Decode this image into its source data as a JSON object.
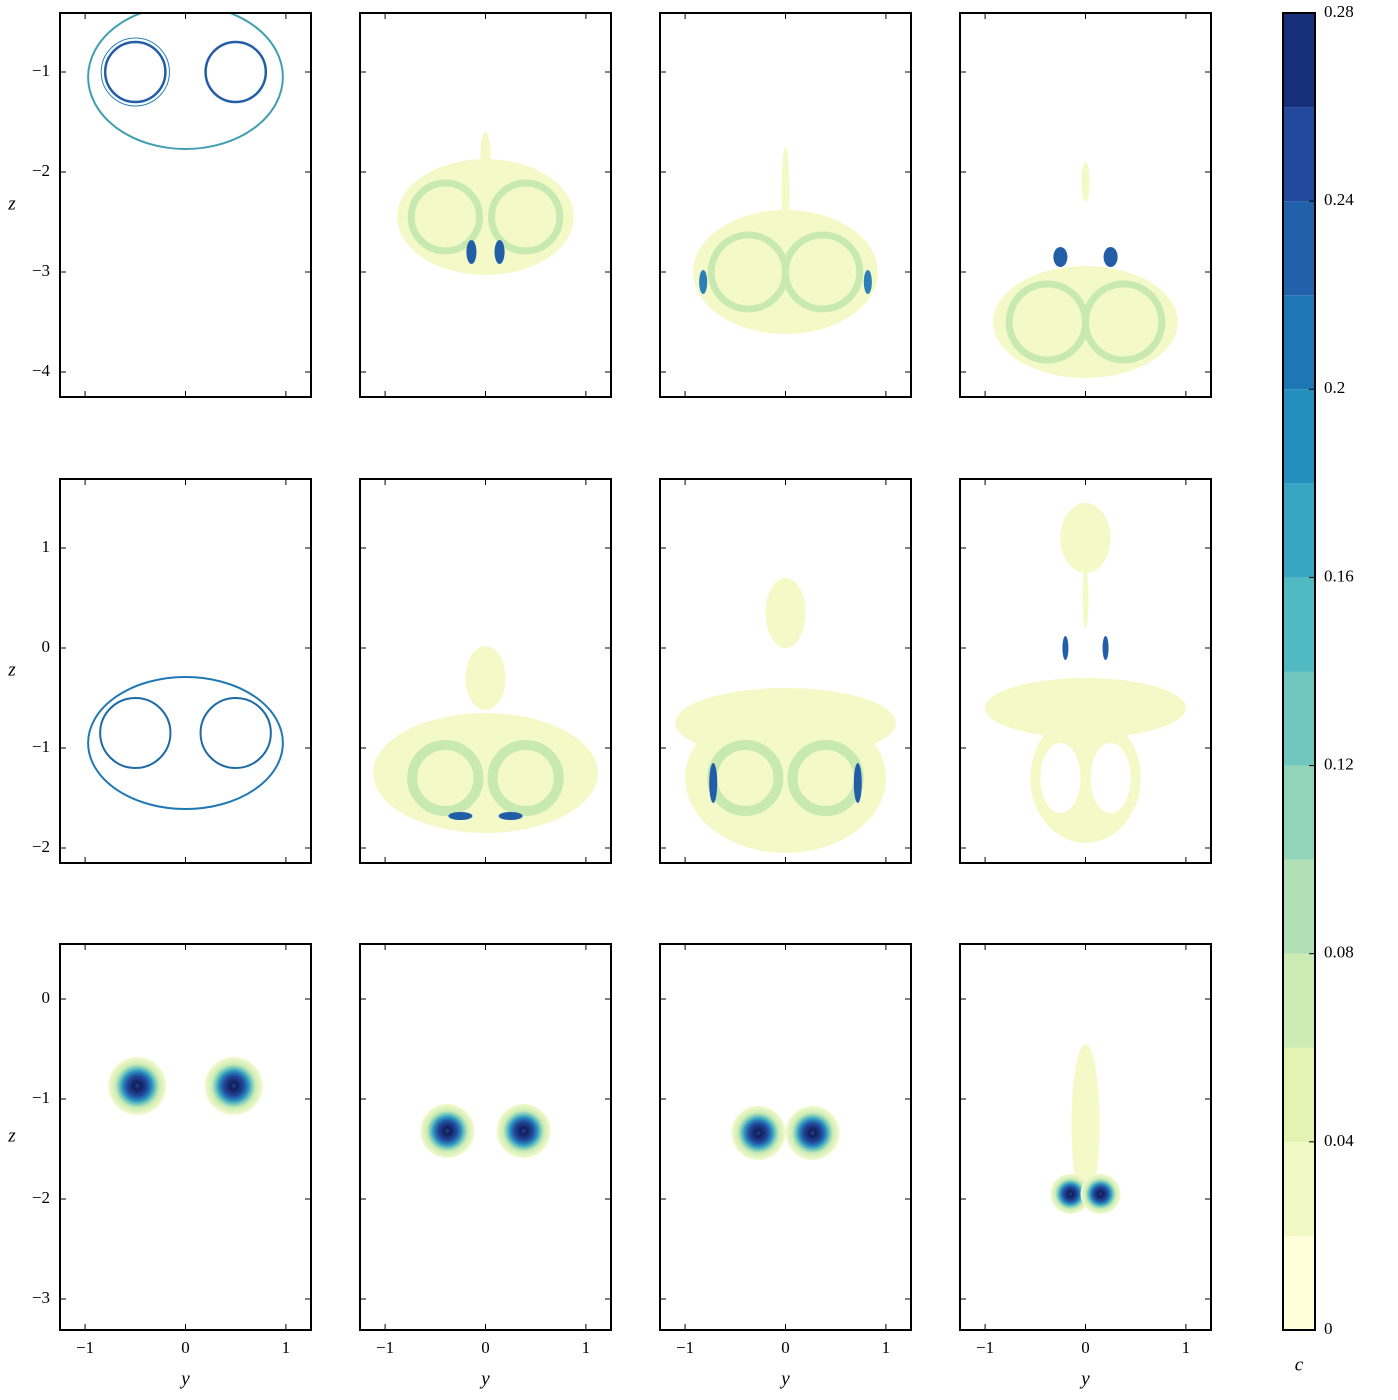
{
  "chart_data": {
    "type": "contour",
    "xlabel": "y",
    "ylabel": "z",
    "xlim": [
      -1.25,
      1.25
    ],
    "xticks": [
      {
        "value": -1,
        "label": "−1"
      },
      0,
      1
    ],
    "rows": [
      {
        "ylim": [
          -4.25,
          -0.41
        ],
        "yticks": [
          {
            "value": -1,
            "label": "−1"
          },
          {
            "value": -2,
            "label": "−2"
          },
          {
            "value": -3,
            "label": "−3"
          },
          {
            "value": -4,
            "label": "−4"
          }
        ]
      },
      {
        "ylim": [
          -2.15,
          1.69
        ],
        "yticks": [
          1,
          0,
          {
            "value": -1,
            "label": "−1"
          },
          {
            "value": -2,
            "label": "−2"
          }
        ]
      },
      {
        "ylim": [
          -3.31,
          0.55
        ],
        "yticks": [
          0,
          {
            "value": -1,
            "label": "−1"
          },
          {
            "value": -2,
            "label": "−2"
          },
          {
            "value": -3,
            "label": "−3"
          }
        ]
      }
    ],
    "colorbar": {
      "label": "c",
      "lim": [
        0,
        0.28
      ],
      "ticks": [
        0,
        0.04,
        0.08,
        0.12,
        0.16,
        0.2,
        0.24,
        0.28
      ],
      "levels": [
        0,
        0.02,
        0.04,
        0.06,
        0.08,
        0.1,
        0.12,
        0.14,
        0.16,
        0.18,
        0.2,
        0.22,
        0.24,
        0.26,
        0.28
      ],
      "colors": [
        "#ffffd9",
        "#f1f9c4",
        "#e2f3b2",
        "#cdebb4",
        "#b1e0b6",
        "#91d4b9",
        "#70c7bd",
        "#51b9c2",
        "#37a6c3",
        "#228fbd",
        "#1e77b4",
        "#2161a9",
        "#23499c",
        "#152f79"
      ]
    }
  }
}
